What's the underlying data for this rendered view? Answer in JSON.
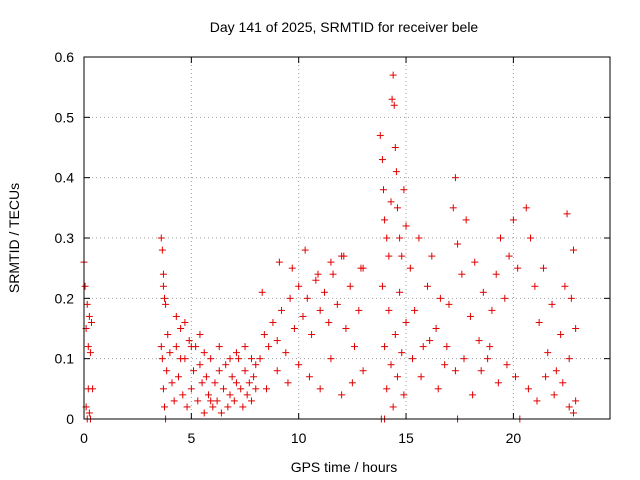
{
  "chart_data": {
    "type": "scatter",
    "title": "Day 141 of 2025, SRMTID for receiver bele",
    "xlabel": "GPS time / hours",
    "ylabel": "SRMTID / TECUs",
    "xlim": [
      0,
      24.5
    ],
    "ylim": [
      0,
      0.6
    ],
    "xticks": [
      0,
      5,
      10,
      15,
      20
    ],
    "yticks": [
      0,
      0.1,
      0.2,
      0.3,
      0.4,
      0.5,
      0.6
    ],
    "xtick_labels": [
      "0",
      "5",
      "10",
      "15",
      "20"
    ],
    "ytick_labels": [
      "0",
      "0.1",
      "0.2",
      "0.3",
      "0.4",
      "0.5",
      "0.6"
    ],
    "grid": true,
    "marker": "+",
    "color": "#e00000",
    "series": [
      {
        "name": "SRMTID",
        "points": [
          [
            0.0,
            0.26
          ],
          [
            0.05,
            0.22
          ],
          [
            0.1,
            0.15
          ],
          [
            0.1,
            0.02
          ],
          [
            0.15,
            0.19
          ],
          [
            0.2,
            0.12
          ],
          [
            0.2,
            0.05
          ],
          [
            0.25,
            0.17
          ],
          [
            0.3,
            0.11
          ],
          [
            0.3,
            0.0
          ],
          [
            0.35,
            0.16
          ],
          [
            0.4,
            0.05
          ],
          [
            0.15,
            0.0
          ],
          [
            0.25,
            0.01
          ],
          [
            3.6,
            0.3
          ],
          [
            3.65,
            0.28
          ],
          [
            3.7,
            0.24
          ],
          [
            3.7,
            0.22
          ],
          [
            3.75,
            0.2
          ],
          [
            3.8,
            0.19
          ],
          [
            3.6,
            0.12
          ],
          [
            3.65,
            0.1
          ],
          [
            3.7,
            0.05
          ],
          [
            3.75,
            0.02
          ],
          [
            3.8,
            0.0
          ],
          [
            3.85,
            0.08
          ],
          [
            3.9,
            0.14
          ],
          [
            4.0,
            0.11
          ],
          [
            4.1,
            0.06
          ],
          [
            4.2,
            0.03
          ],
          [
            4.3,
            0.12
          ],
          [
            4.4,
            0.07
          ],
          [
            4.5,
            0.15
          ],
          [
            4.6,
            0.04
          ],
          [
            4.7,
            0.1
          ],
          [
            4.8,
            0.02
          ],
          [
            4.9,
            0.13
          ],
          [
            5.0,
            0.05
          ],
          [
            5.1,
            0.08
          ],
          [
            5.2,
            0.12
          ],
          [
            5.3,
            0.03
          ],
          [
            5.4,
            0.09
          ],
          [
            5.5,
            0.06
          ],
          [
            5.6,
            0.01
          ],
          [
            5.7,
            0.07
          ],
          [
            5.8,
            0.04
          ],
          [
            5.9,
            0.1
          ],
          [
            6.0,
            0.02
          ],
          [
            6.1,
            0.06
          ],
          [
            6.2,
            0.03
          ],
          [
            6.3,
            0.08
          ],
          [
            6.4,
            0.01
          ],
          [
            6.5,
            0.05
          ],
          [
            6.6,
            0.09
          ],
          [
            6.7,
            0.02
          ],
          [
            6.8,
            0.04
          ],
          [
            6.9,
            0.07
          ],
          [
            7.0,
            0.03
          ],
          [
            7.1,
            0.06
          ],
          [
            7.2,
            0.1
          ],
          [
            7.3,
            0.05
          ],
          [
            7.4,
            0.02
          ],
          [
            7.5,
            0.08
          ],
          [
            7.6,
            0.04
          ],
          [
            7.7,
            0.06
          ],
          [
            7.8,
            0.03
          ],
          [
            7.9,
            0.07
          ],
          [
            8.0,
            0.05
          ],
          [
            4.3,
            0.17
          ],
          [
            4.5,
            0.1
          ],
          [
            4.7,
            0.16
          ],
          [
            5.0,
            0.12
          ],
          [
            5.4,
            0.14
          ],
          [
            5.6,
            0.11
          ],
          [
            5.9,
            0.03
          ],
          [
            6.3,
            0.12
          ],
          [
            6.8,
            0.1
          ],
          [
            7.1,
            0.11
          ],
          [
            7.5,
            0.12
          ],
          [
            7.8,
            0.1
          ],
          [
            8.0,
            0.09
          ],
          [
            8.2,
            0.1
          ],
          [
            8.4,
            0.14
          ],
          [
            8.6,
            0.12
          ],
          [
            8.8,
            0.16
          ],
          [
            9.0,
            0.13
          ],
          [
            9.2,
            0.18
          ],
          [
            9.4,
            0.11
          ],
          [
            9.6,
            0.2
          ],
          [
            9.8,
            0.15
          ],
          [
            10.0,
            0.22
          ],
          [
            10.2,
            0.17
          ],
          [
            10.4,
            0.2
          ],
          [
            10.6,
            0.14
          ],
          [
            10.8,
            0.23
          ],
          [
            11.0,
            0.18
          ],
          [
            11.2,
            0.21
          ],
          [
            11.4,
            0.16
          ],
          [
            11.6,
            0.24
          ],
          [
            11.8,
            0.19
          ],
          [
            12.0,
            0.27
          ],
          [
            12.2,
            0.15
          ],
          [
            12.4,
            0.22
          ],
          [
            12.6,
            0.12
          ],
          [
            12.8,
            0.18
          ],
          [
            13.0,
            0.25
          ],
          [
            8.5,
            0.05
          ],
          [
            9.0,
            0.08
          ],
          [
            9.5,
            0.06
          ],
          [
            10.0,
            0.09
          ],
          [
            10.5,
            0.07
          ],
          [
            11.0,
            0.05
          ],
          [
            11.5,
            0.1
          ],
          [
            12.0,
            0.04
          ],
          [
            12.5,
            0.06
          ],
          [
            13.0,
            0.08
          ],
          [
            8.3,
            0.21
          ],
          [
            9.1,
            0.26
          ],
          [
            9.7,
            0.25
          ],
          [
            10.3,
            0.28
          ],
          [
            10.9,
            0.24
          ],
          [
            11.5,
            0.26
          ],
          [
            12.1,
            0.27
          ],
          [
            12.9,
            0.25
          ],
          [
            13.8,
            0.47
          ],
          [
            13.9,
            0.43
          ],
          [
            13.95,
            0.38
          ],
          [
            14.0,
            0.33
          ],
          [
            14.1,
            0.3
          ],
          [
            14.2,
            0.27
          ],
          [
            14.3,
            0.36
          ],
          [
            14.35,
            0.53
          ],
          [
            14.4,
            0.57
          ],
          [
            14.45,
            0.52
          ],
          [
            14.5,
            0.45
          ],
          [
            14.55,
            0.41
          ],
          [
            14.6,
            0.35
          ],
          [
            14.7,
            0.3
          ],
          [
            14.8,
            0.27
          ],
          [
            14.9,
            0.38
          ],
          [
            15.0,
            0.32
          ],
          [
            13.9,
            0.22
          ],
          [
            14.0,
            0.12
          ],
          [
            14.1,
            0.05
          ],
          [
            14.2,
            0.18
          ],
          [
            14.3,
            0.09
          ],
          [
            14.4,
            0.02
          ],
          [
            14.5,
            0.14
          ],
          [
            14.6,
            0.07
          ],
          [
            14.7,
            0.21
          ],
          [
            14.8,
            0.11
          ],
          [
            14.9,
            0.04
          ],
          [
            15.0,
            0.16
          ],
          [
            13.85,
            0.0
          ],
          [
            14.0,
            0.0
          ],
          [
            15.2,
            0.25
          ],
          [
            15.4,
            0.18
          ],
          [
            15.6,
            0.3
          ],
          [
            15.8,
            0.12
          ],
          [
            16.0,
            0.22
          ],
          [
            16.2,
            0.27
          ],
          [
            16.4,
            0.15
          ],
          [
            16.6,
            0.2
          ],
          [
            16.8,
            0.09
          ],
          [
            17.0,
            0.19
          ],
          [
            17.2,
            0.35
          ],
          [
            17.3,
            0.4
          ],
          [
            17.4,
            0.29
          ],
          [
            17.6,
            0.24
          ],
          [
            17.8,
            0.33
          ],
          [
            18.0,
            0.17
          ],
          [
            18.2,
            0.26
          ],
          [
            18.4,
            0.13
          ],
          [
            18.6,
            0.21
          ],
          [
            18.8,
            0.1
          ],
          [
            19.0,
            0.18
          ],
          [
            19.2,
            0.24
          ],
          [
            19.4,
            0.3
          ],
          [
            19.6,
            0.2
          ],
          [
            19.8,
            0.27
          ],
          [
            20.0,
            0.33
          ],
          [
            20.2,
            0.25
          ],
          [
            15.3,
            0.1
          ],
          [
            15.7,
            0.07
          ],
          [
            16.1,
            0.13
          ],
          [
            16.5,
            0.05
          ],
          [
            16.9,
            0.12
          ],
          [
            17.3,
            0.08
          ],
          [
            17.7,
            0.1
          ],
          [
            18.1,
            0.04
          ],
          [
            18.5,
            0.08
          ],
          [
            18.9,
            0.12
          ],
          [
            19.3,
            0.06
          ],
          [
            19.7,
            0.09
          ],
          [
            20.1,
            0.07
          ],
          [
            17.4,
            0.0
          ],
          [
            20.3,
            0.0
          ],
          [
            20.6,
            0.35
          ],
          [
            20.8,
            0.3
          ],
          [
            21.0,
            0.22
          ],
          [
            21.2,
            0.16
          ],
          [
            21.4,
            0.25
          ],
          [
            21.6,
            0.11
          ],
          [
            21.8,
            0.19
          ],
          [
            22.0,
            0.08
          ],
          [
            22.2,
            0.14
          ],
          [
            22.4,
            0.22
          ],
          [
            22.5,
            0.34
          ],
          [
            22.6,
            0.1
          ],
          [
            22.7,
            0.2
          ],
          [
            22.8,
            0.28
          ],
          [
            22.9,
            0.15
          ],
          [
            20.7,
            0.05
          ],
          [
            21.1,
            0.03
          ],
          [
            21.5,
            0.07
          ],
          [
            21.9,
            0.04
          ],
          [
            22.3,
            0.06
          ],
          [
            22.6,
            0.02
          ],
          [
            22.8,
            0.01
          ],
          [
            22.9,
            0.03
          ]
        ]
      }
    ]
  }
}
